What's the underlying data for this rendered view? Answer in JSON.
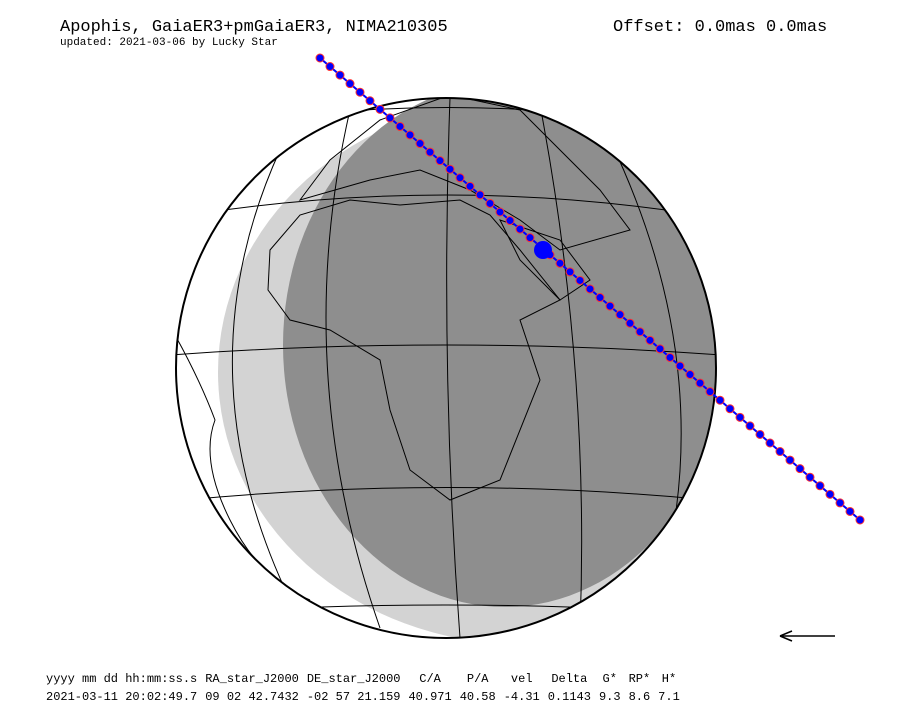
{
  "header": {
    "title": "Apophis, GaiaER3+pmGaiaER3, NIMA210305",
    "updated": "updated: 2021-03-06 by Lucky Star",
    "offset": "Offset: 0.0mas 0.0mas"
  },
  "table": {
    "columns": [
      "yyyy mm dd hh:mm:ss.s",
      "RA_star_J2000",
      "DE_star_J2000",
      "C/A",
      "P/A",
      "vel",
      "Delta",
      "G*",
      "RP*",
      "H*"
    ],
    "rows": [
      [
        "2021-03-11 20:02:49.7",
        "09 02 42.7432",
        "-02 57 21.159",
        "40.971",
        "40.58",
        "-4.31",
        "0.1143",
        "9.3",
        "8.6",
        "7.1"
      ]
    ]
  }
}
